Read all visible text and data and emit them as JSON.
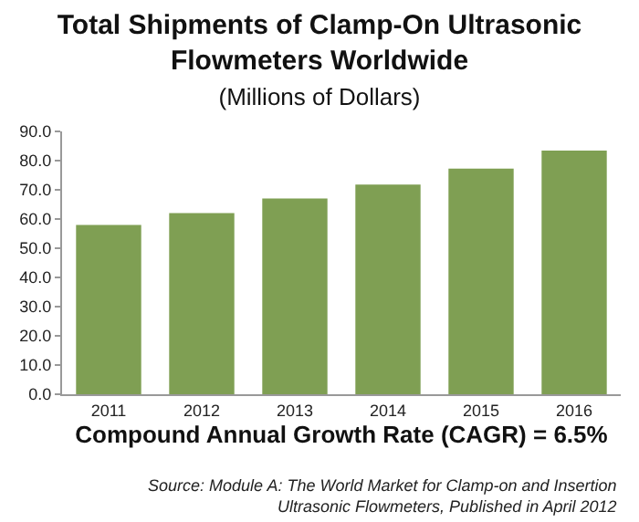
{
  "chart_data": {
    "type": "bar",
    "title": "Total Shipments of Clamp-On Ultrasonic\nFlowmeters Worldwide",
    "subtitle": "(Millions of Dollars)",
    "xlabel": "Compound Annual Growth Rate (CAGR) = 6.5%",
    "categories": [
      "2011",
      "2012",
      "2013",
      "2014",
      "2015",
      "2016"
    ],
    "values": [
      58.0,
      62.0,
      67.0,
      71.8,
      77.3,
      83.4
    ],
    "color": "#7f9f53",
    "ylim": [
      0,
      90
    ],
    "yticks": [
      {
        "value": 0,
        "label": "0.0"
      },
      {
        "value": 10,
        "label": "10.0"
      },
      {
        "value": 20,
        "label": "20.0"
      },
      {
        "value": 30,
        "label": "30.0"
      },
      {
        "value": 40,
        "label": "40.0"
      },
      {
        "value": 50,
        "label": "50.0"
      },
      {
        "value": 60,
        "label": "60.0"
      },
      {
        "value": 70,
        "label": "70.0"
      },
      {
        "value": 80,
        "label": "80.0"
      },
      {
        "value": 90,
        "label": "90.0"
      }
    ],
    "legend": false,
    "annotations": [
      "Source: Module A: The World Market for Clamp-on and Insertion\nUltrasonic Flowmeters, Published in April 2012"
    ]
  }
}
